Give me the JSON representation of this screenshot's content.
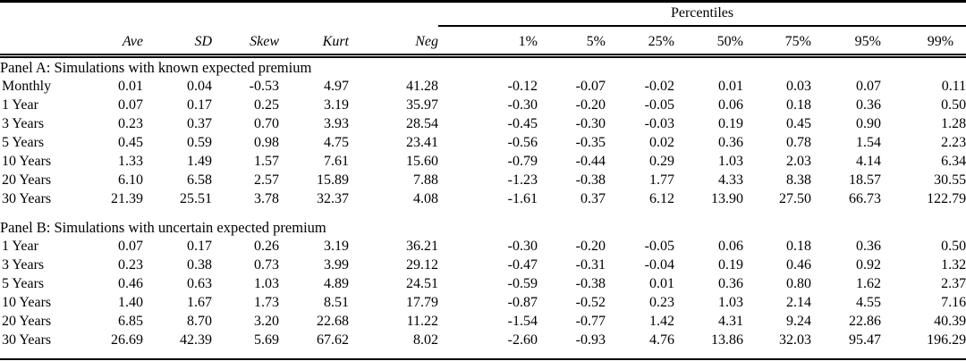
{
  "colors": {
    "text": "#000000",
    "background": "#ffffff",
    "rule": "#000000"
  },
  "table": {
    "group_header": {
      "label": "Percentiles"
    },
    "corner_label": "",
    "stat_headers": [
      "Ave",
      "SD",
      "Skew",
      "Kurt",
      "Neg"
    ],
    "percentile_headers": [
      "1%",
      "5%",
      "25%",
      "50%",
      "75%",
      "95%",
      "99%"
    ],
    "panels": [
      {
        "title": "Panel A: Simulations with known expected premium",
        "rows": [
          {
            "label": "Monthly",
            "values": [
              "0.01",
              "0.04",
              "-0.53",
              "4.97",
              "41.28",
              "-0.12",
              "-0.07",
              "-0.02",
              "0.01",
              "0.03",
              "0.07",
              "0.11"
            ]
          },
          {
            "label": "1 Year",
            "values": [
              "0.07",
              "0.17",
              "0.25",
              "3.19",
              "35.97",
              "-0.30",
              "-0.20",
              "-0.05",
              "0.06",
              "0.18",
              "0.36",
              "0.50"
            ]
          },
          {
            "label": "3 Years",
            "values": [
              "0.23",
              "0.37",
              "0.70",
              "3.93",
              "28.54",
              "-0.45",
              "-0.30",
              "-0.03",
              "0.19",
              "0.45",
              "0.90",
              "1.28"
            ]
          },
          {
            "label": "5 Years",
            "values": [
              "0.45",
              "0.59",
              "0.98",
              "4.75",
              "23.41",
              "-0.56",
              "-0.35",
              "0.02",
              "0.36",
              "0.78",
              "1.54",
              "2.23"
            ]
          },
          {
            "label": "10 Years",
            "values": [
              "1.33",
              "1.49",
              "1.57",
              "7.61",
              "15.60",
              "-0.79",
              "-0.44",
              "0.29",
              "1.03",
              "2.03",
              "4.14",
              "6.34"
            ]
          },
          {
            "label": "20 Years",
            "values": [
              "6.10",
              "6.58",
              "2.57",
              "15.89",
              "7.88",
              "-1.23",
              "-0.38",
              "1.77",
              "4.33",
              "8.38",
              "18.57",
              "30.55"
            ]
          },
          {
            "label": "30 Years",
            "values": [
              "21.39",
              "25.51",
              "3.78",
              "32.37",
              "4.08",
              "-1.61",
              "0.37",
              "6.12",
              "13.90",
              "27.50",
              "66.73",
              "122.79"
            ]
          }
        ]
      },
      {
        "title": "Panel B: Simulations with uncertain expected premium",
        "rows": [
          {
            "label": "1 Year",
            "values": [
              "0.07",
              "0.17",
              "0.26",
              "3.19",
              "36.21",
              "-0.30",
              "-0.20",
              "-0.05",
              "0.06",
              "0.18",
              "0.36",
              "0.50"
            ]
          },
          {
            "label": "3 Years",
            "values": [
              "0.23",
              "0.38",
              "0.73",
              "3.99",
              "29.12",
              "-0.47",
              "-0.31",
              "-0.04",
              "0.19",
              "0.46",
              "0.92",
              "1.32"
            ]
          },
          {
            "label": "5 Years",
            "values": [
              "0.46",
              "0.63",
              "1.03",
              "4.89",
              "24.51",
              "-0.59",
              "-0.38",
              "0.01",
              "0.36",
              "0.80",
              "1.62",
              "2.37"
            ]
          },
          {
            "label": "10 Years",
            "values": [
              "1.40",
              "1.67",
              "1.73",
              "8.51",
              "17.79",
              "-0.87",
              "-0.52",
              "0.23",
              "1.03",
              "2.14",
              "4.55",
              "7.16"
            ]
          },
          {
            "label": "20 Years",
            "values": [
              "6.85",
              "8.70",
              "3.20",
              "22.68",
              "11.22",
              "-1.54",
              "-0.77",
              "1.42",
              "4.31",
              "9.24",
              "22.86",
              "40.39"
            ]
          },
          {
            "label": "30 Years",
            "values": [
              "26.69",
              "42.39",
              "5.69",
              "67.62",
              "8.02",
              "-2.60",
              "-0.93",
              "4.76",
              "13.86",
              "32.03",
              "95.47",
              "196.29"
            ]
          }
        ]
      }
    ]
  }
}
